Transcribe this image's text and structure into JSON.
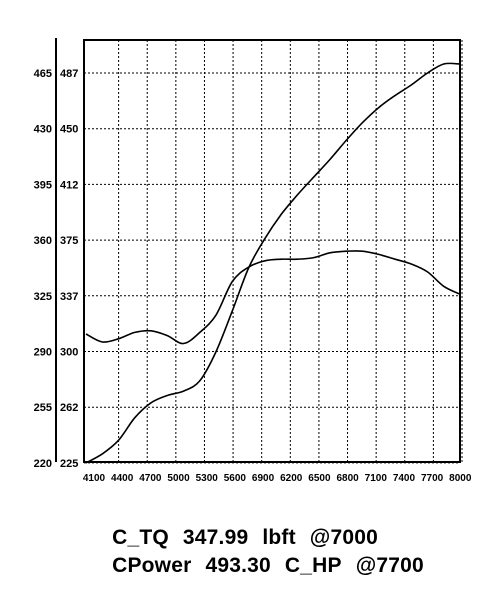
{
  "chart_data": {
    "type": "line",
    "title": "",
    "xlabel": "",
    "ylabel": "",
    "grid": true,
    "x_ticks": [
      "4100",
      "4400",
      "4700",
      "5000",
      "5300",
      "5600",
      "6900",
      "6200",
      "6500",
      "6800",
      "7100",
      "7400",
      "7700",
      "8000"
    ],
    "y_ticks_outer": [
      "220",
      "255",
      "290",
      "325",
      "360",
      "395",
      "430",
      "465"
    ],
    "y_ticks_inner": [
      "225",
      "262",
      "300",
      "337",
      "375",
      "412",
      "450",
      "487"
    ],
    "series": [
      {
        "name": "",
        "axis": "inner",
        "values": [
          225,
          231,
          240,
          255,
          265,
          270,
          273,
          280,
          300,
          327,
          356,
          376,
          392,
          405,
          417,
          429,
          442,
          454,
          464,
          472,
          479,
          487,
          493,
          493
        ]
      },
      {
        "name": "",
        "axis": "outer",
        "values": [
          301,
          296,
          298,
          302,
          303,
          300,
          295,
          302,
          313,
          334,
          343,
          347,
          348,
          348,
          349,
          352,
          353,
          353,
          351,
          348,
          345,
          340,
          331,
          326
        ]
      }
    ]
  },
  "readouts": {
    "torque": {
      "label": "C_TQ",
      "value": "347.99",
      "unit": "lbft",
      "rpm": "@7000"
    },
    "power": {
      "label": "CPower",
      "value": "493.30",
      "unit": "C_HP",
      "rpm": "@7700"
    }
  }
}
